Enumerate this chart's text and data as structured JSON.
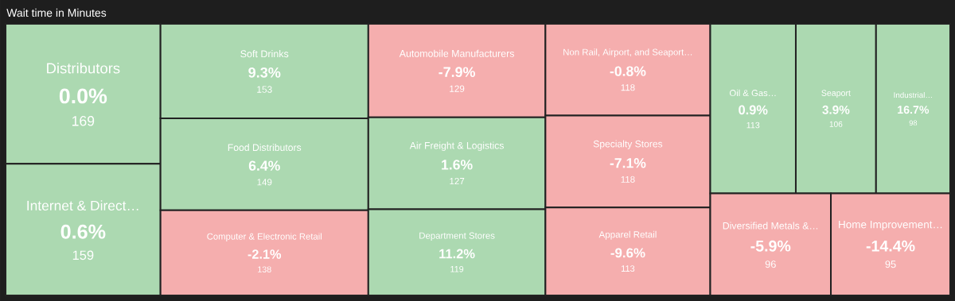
{
  "chart_data": {
    "type": "other",
    "title": "Wait time in Minutes",
    "categories": [
      "Distributors",
      "Internet & Direct…",
      "Soft Drinks",
      "Food Distributors",
      "Computer & Electronic Retail",
      "Automobile Manufacturers",
      "Air Freight & Logistics",
      "Department Stores",
      "Non Rail, Airport, and Seaport…",
      "Specialty Stores",
      "Apparel Retail",
      "Oil & Gas…",
      "Seaport",
      "Industrial…",
      "Diversified Metals &…",
      "Home Improvement…"
    ],
    "series": [
      {
        "values": [
          169,
          159,
          153,
          149,
          138,
          129,
          127,
          119,
          118,
          118,
          113,
          113,
          106,
          98,
          96,
          95
        ],
        "colors": [
          "#acd9b1",
          "#acd9b1",
          "#acd9b1",
          "#acd9b1",
          "#f5aeae",
          "#f5aeae",
          "#acd9b1",
          "#acd9b1",
          "#f5aeae",
          "#f5aeae",
          "#f5aeae",
          "#acd9b1",
          "#acd9b1",
          "#acd9b1",
          "#f5aeae",
          "#f5aeae"
        ]
      },
      {
        "values": [
          0.0,
          0.6,
          9.3,
          6.4,
          -2.1,
          -7.9,
          1.6,
          11.2,
          -0.8,
          -7.1,
          -9.6,
          0.9,
          3.9,
          16.7,
          -5.9,
          -14.4
        ],
        "value_labels": [
          "0.0%",
          "0.6%",
          "9.3%",
          "6.4%",
          "-2.1%",
          "-7.9%",
          "1.6%",
          "11.2%",
          "-0.8%",
          "-7.1%",
          "-9.6%",
          "0.9%",
          "3.9%",
          "16.7%",
          "-5.9%",
          "-14.4%"
        ]
      }
    ],
    "data_labels": true
  }
}
